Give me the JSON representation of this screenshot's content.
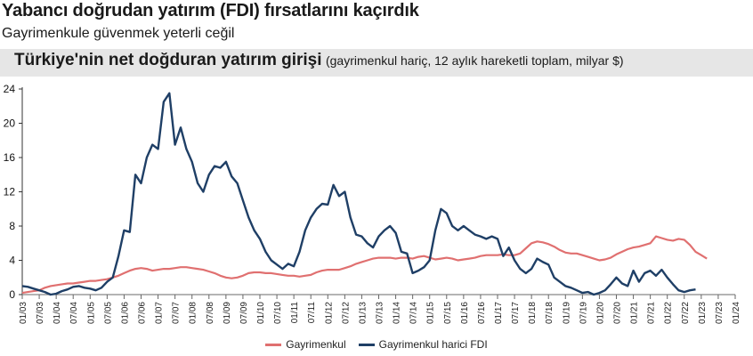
{
  "header": {
    "title": "Yabancı doğrudan yatırım (FDI) fırsatlarını kaçırdık",
    "subtitle": "Gayrimenkule güvenmek yeterli ceğil",
    "chart_title": "Türkiye'nin net doğduran yatırım girişi",
    "chart_note": "(gayrimenkul hariç, 12 aylık hareketli toplam, milyar $)"
  },
  "colors": {
    "gayrimenkul": "#e07070",
    "fdi": "#1f3f66",
    "band": "#e6e6e6"
  },
  "chart_data": {
    "type": "line",
    "title": "Türkiye'nin net doğduran yatırım girişi (gayrimenkul hariç, 12 aylık hareketli toplam, milyar $)",
    "xlabel": "",
    "ylabel": "milyar $",
    "ylim": [
      0,
      24
    ],
    "yticks": [
      0,
      4,
      8,
      12,
      16,
      20,
      24
    ],
    "grid": false,
    "legend_position": "bottom",
    "xticks": [
      "01/03",
      "07/03",
      "01/04",
      "07/04",
      "01/05",
      "07/05",
      "01/06",
      "07/06",
      "01/07",
      "07/07",
      "01/08",
      "07/08",
      "01/09",
      "07/09",
      "01/10",
      "07/10",
      "01/11",
      "07/11",
      "01/12",
      "07/12",
      "01/13",
      "07/13",
      "01/14",
      "07/14",
      "01/15",
      "07/15",
      "01/16",
      "07/16",
      "01/17",
      "07/17",
      "01/18",
      "07/18",
      "01/19",
      "07/19",
      "01/20",
      "07/20",
      "01/21",
      "07/21",
      "01/22",
      "07/22",
      "01/23",
      "07/23",
      "01/24"
    ],
    "x": [
      "01/03",
      "03/03",
      "05/03",
      "07/03",
      "09/03",
      "11/03",
      "01/04",
      "03/04",
      "05/04",
      "07/04",
      "09/04",
      "11/04",
      "01/05",
      "03/05",
      "05/05",
      "07/05",
      "09/05",
      "11/05",
      "01/06",
      "03/06",
      "05/06",
      "07/06",
      "09/06",
      "11/06",
      "01/07",
      "03/07",
      "05/07",
      "07/07",
      "09/07",
      "11/07",
      "01/08",
      "03/08",
      "05/08",
      "07/08",
      "09/08",
      "11/08",
      "01/09",
      "03/09",
      "05/09",
      "07/09",
      "09/09",
      "11/09",
      "01/10",
      "03/10",
      "05/10",
      "07/10",
      "09/10",
      "11/10",
      "01/11",
      "03/11",
      "05/11",
      "07/11",
      "09/11",
      "11/11",
      "01/12",
      "03/12",
      "05/12",
      "07/12",
      "09/12",
      "11/12",
      "01/13",
      "03/13",
      "05/13",
      "07/13",
      "09/13",
      "11/13",
      "01/14",
      "03/14",
      "05/14",
      "07/14",
      "09/14",
      "11/14",
      "01/15",
      "03/15",
      "05/15",
      "07/15",
      "09/15",
      "11/15",
      "01/16",
      "03/16",
      "05/16",
      "07/16",
      "09/16",
      "11/16",
      "01/17",
      "03/17",
      "05/17",
      "07/17",
      "09/17",
      "11/17",
      "01/18",
      "03/18",
      "05/18",
      "07/18",
      "09/18",
      "11/18",
      "01/19",
      "03/19",
      "05/19",
      "07/19",
      "09/19",
      "11/19",
      "01/20",
      "03/20",
      "05/20",
      "07/20",
      "09/20",
      "11/20",
      "01/21",
      "03/21",
      "05/21",
      "07/21",
      "09/21",
      "11/21",
      "01/22",
      "03/22",
      "05/22",
      "07/22",
      "09/22",
      "11/22",
      "01/23",
      "03/23",
      "05/23",
      "07/23",
      "09/23",
      "11/23"
    ],
    "series": [
      {
        "name": "Gayrimenkul",
        "color": "#e07070",
        "values": [
          0.2,
          0.3,
          0.4,
          0.5,
          0.8,
          1.0,
          1.1,
          1.2,
          1.3,
          1.3,
          1.4,
          1.5,
          1.6,
          1.6,
          1.7,
          1.8,
          2.0,
          2.2,
          2.5,
          2.8,
          3.0,
          3.1,
          3.0,
          2.8,
          2.9,
          3.0,
          3.0,
          3.1,
          3.2,
          3.2,
          3.1,
          3.0,
          2.9,
          2.7,
          2.5,
          2.2,
          2.0,
          1.9,
          2.0,
          2.2,
          2.5,
          2.6,
          2.6,
          2.5,
          2.5,
          2.4,
          2.3,
          2.2,
          2.2,
          2.1,
          2.2,
          2.3,
          2.6,
          2.8,
          2.9,
          2.9,
          2.9,
          3.1,
          3.3,
          3.6,
          3.8,
          4.0,
          4.2,
          4.3,
          4.3,
          4.3,
          4.2,
          4.3,
          4.3,
          4.2,
          4.4,
          4.5,
          4.3,
          4.1,
          4.2,
          4.3,
          4.2,
          4.0,
          4.1,
          4.2,
          4.3,
          4.5,
          4.6,
          4.6,
          4.6,
          4.7,
          4.6,
          4.6,
          4.8,
          5.4,
          6.0,
          6.2,
          6.1,
          5.9,
          5.6,
          5.2,
          4.9,
          4.8,
          4.8,
          4.6,
          4.4,
          4.2,
          4.0,
          4.1,
          4.3,
          4.7,
          5.0,
          5.3,
          5.5,
          5.6,
          5.8,
          6.0,
          6.8,
          6.6,
          6.4,
          6.3,
          6.5,
          6.4,
          5.8,
          5.0,
          4.6,
          4.2
        ]
      },
      {
        "name": "Gayrimenkul harici FDI",
        "color": "#1f3f66",
        "values": [
          1.0,
          0.9,
          0.7,
          0.5,
          0.3,
          0.0,
          0.1,
          0.4,
          0.6,
          0.9,
          1.0,
          0.8,
          0.7,
          0.5,
          0.8,
          1.5,
          2.0,
          4.5,
          7.5,
          7.3,
          14.0,
          13.0,
          16.0,
          17.5,
          17.0,
          22.5,
          23.5,
          17.5,
          19.5,
          17.0,
          15.5,
          13.0,
          12.0,
          14.0,
          15.0,
          14.8,
          15.5,
          13.8,
          13.0,
          11.0,
          9.0,
          7.5,
          6.5,
          5.0,
          4.0,
          3.5,
          3.0,
          3.6,
          3.3,
          5.0,
          7.5,
          9.0,
          10.0,
          10.6,
          10.5,
          12.8,
          11.5,
          12.0,
          9.0,
          7.0,
          6.8,
          6.0,
          5.5,
          6.8,
          7.5,
          8.0,
          7.2,
          5.0,
          4.8,
          2.5,
          2.8,
          3.2,
          4.0,
          7.5,
          10.0,
          9.5,
          8.0,
          7.5,
          8.0,
          7.5,
          7.0,
          6.8,
          6.5,
          6.8,
          6.5,
          4.5,
          5.5,
          4.0,
          3.0,
          2.5,
          3.0,
          4.2,
          3.8,
          3.5,
          2.0,
          1.5,
          1.0,
          0.8,
          0.5,
          0.2,
          0.3,
          0.0,
          0.2,
          0.5,
          1.2,
          2.0,
          1.3,
          1.0,
          2.8,
          1.5,
          2.5,
          2.8,
          2.2,
          2.9,
          2.0,
          1.2,
          0.5,
          0.3,
          0.5,
          0.6
        ]
      }
    ]
  },
  "legend": {
    "items": [
      {
        "label": "Gayrimenkul"
      },
      {
        "label": "Gayrimenkul harici FDI"
      }
    ]
  }
}
